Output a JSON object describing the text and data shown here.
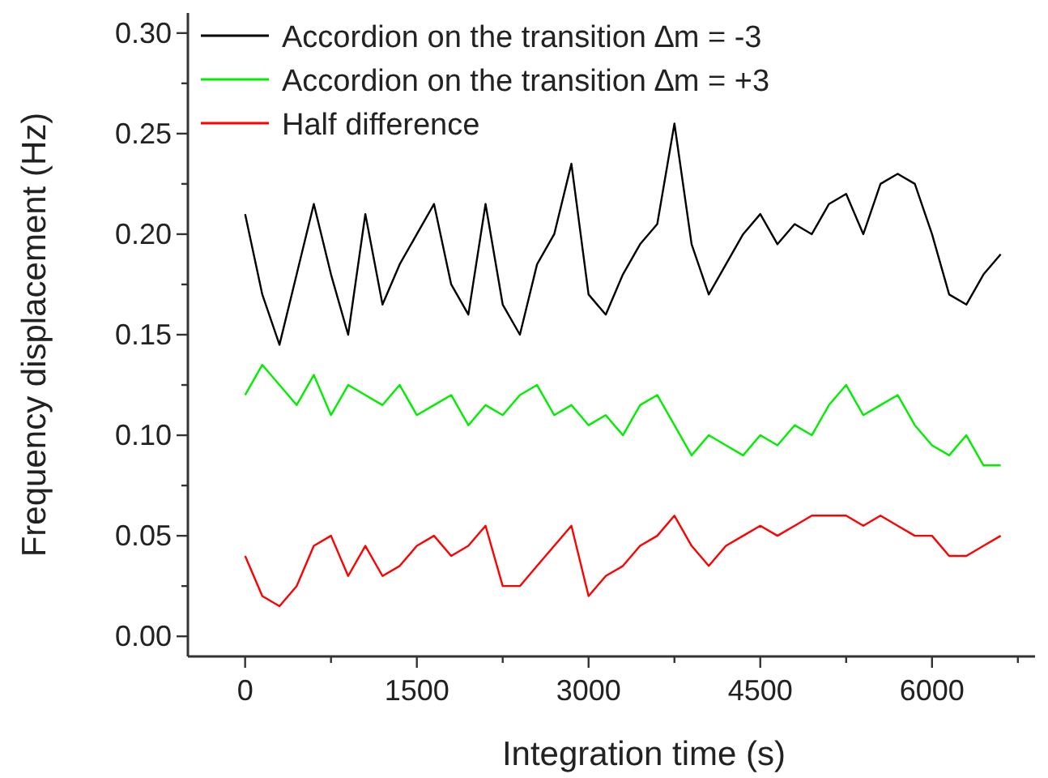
{
  "chart_data": {
    "type": "line",
    "xlabel": "Integration time (s)",
    "ylabel": "Frequency displacement (Hz)",
    "legend": "top left",
    "grid": false,
    "marker": "none",
    "line_style": "solid",
    "xlim": [
      -500,
      6900
    ],
    "ylim": [
      -0.01,
      0.31
    ],
    "xticks": [
      0,
      {
        "value": 750,
        "label": null
      },
      1500,
      {
        "value": 2250,
        "label": null
      },
      3000,
      {
        "value": 3750,
        "label": null
      },
      4500,
      {
        "value": 5250,
        "label": null
      },
      6000,
      {
        "value": 6750,
        "label": null
      }
    ],
    "yticks": [
      {
        "value": 0,
        "label": "0.00"
      },
      {
        "value": 0.025,
        "label": null
      },
      {
        "value": 0.05,
        "label": "0.05"
      },
      {
        "value": 0.075,
        "label": null
      },
      {
        "value": 0.1,
        "label": "0.10"
      },
      {
        "value": 0.125,
        "label": null
      },
      {
        "value": 0.15,
        "label": "0.15"
      },
      {
        "value": 0.175,
        "label": null
      },
      {
        "value": 0.2,
        "label": "0.20"
      },
      {
        "value": 0.225,
        "label": null
      },
      {
        "value": 0.25,
        "label": "0.25"
      },
      {
        "value": 0.275,
        "label": null
      },
      {
        "value": 0.3,
        "label": "0.30"
      }
    ],
    "x": [
      0,
      150,
      300,
      450,
      600,
      750,
      900,
      1050,
      1200,
      1350,
      1500,
      1650,
      1800,
      1950,
      2100,
      2250,
      2400,
      2550,
      2700,
      2850,
      3000,
      3150,
      3300,
      3450,
      3600,
      3750,
      3900,
      4050,
      4200,
      4350,
      4500,
      4650,
      4800,
      4950,
      5100,
      5250,
      5400,
      5550,
      5700,
      5850,
      6000,
      6150,
      6300,
      6450,
      6600
    ],
    "series": [
      {
        "name": "Accordion on the transition ∆m = -3",
        "color": "#000000",
        "values": [
          0.21,
          0.17,
          0.145,
          0.18,
          0.215,
          0.18,
          0.15,
          0.21,
          0.165,
          0.185,
          0.2,
          0.215,
          0.175,
          0.16,
          0.215,
          0.165,
          0.15,
          0.185,
          0.2,
          0.235,
          0.17,
          0.16,
          0.18,
          0.195,
          0.205,
          0.255,
          0.195,
          0.17,
          0.185,
          0.2,
          0.21,
          0.195,
          0.205,
          0.2,
          0.215,
          0.22,
          0.2,
          0.225,
          0.23,
          0.225,
          0.2,
          0.17,
          0.165,
          0.18,
          0.19
        ]
      },
      {
        "name": "Accordion on the transition ∆m = +3",
        "color": "#00ee00",
        "values": [
          0.12,
          0.135,
          0.125,
          0.115,
          0.13,
          0.11,
          0.125,
          0.12,
          0.115,
          0.125,
          0.11,
          0.115,
          0.12,
          0.105,
          0.115,
          0.11,
          0.12,
          0.125,
          0.11,
          0.115,
          0.105,
          0.11,
          0.1,
          0.115,
          0.12,
          0.105,
          0.09,
          0.1,
          0.095,
          0.09,
          0.1,
          0.095,
          0.105,
          0.1,
          0.115,
          0.125,
          0.11,
          0.115,
          0.12,
          0.105,
          0.095,
          0.09,
          0.1,
          0.085,
          0.085
        ]
      },
      {
        "name": "Half difference",
        "color": "#ff0000",
        "values": [
          0.04,
          0.02,
          0.015,
          0.025,
          0.045,
          0.05,
          0.03,
          0.045,
          0.03,
          0.035,
          0.045,
          0.05,
          0.04,
          0.045,
          0.055,
          0.025,
          0.025,
          0.035,
          0.045,
          0.055,
          0.02,
          0.03,
          0.035,
          0.045,
          0.05,
          0.06,
          0.045,
          0.035,
          0.045,
          0.05,
          0.055,
          0.05,
          0.055,
          0.06,
          0.06,
          0.06,
          0.055,
          0.06,
          0.055,
          0.05,
          0.05,
          0.04,
          0.04,
          0.045,
          0.05
        ]
      }
    ]
  }
}
